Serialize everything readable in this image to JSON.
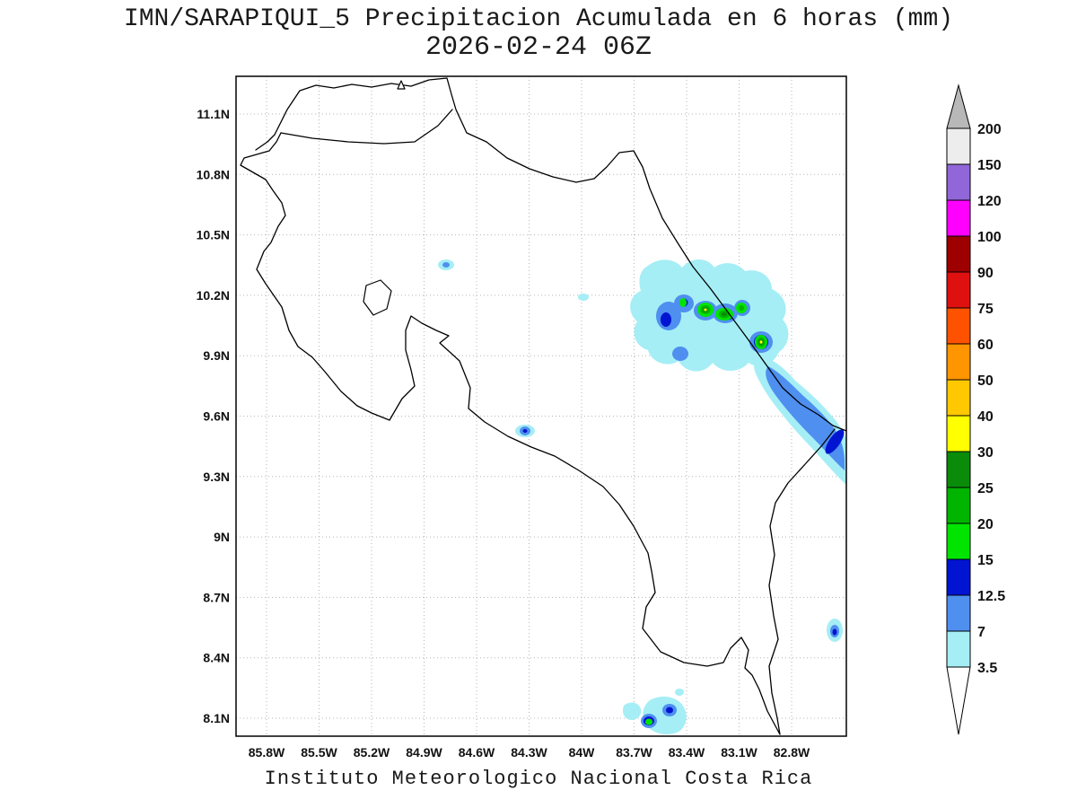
{
  "title": {
    "line1": "IMN/SARAPIQUI_5 Precipitacion Acumulada en 6 horas (mm)",
    "line2": "2026-02-24 06Z"
  },
  "footer": "Instituto Meteorologico Nacional Costa Rica",
  "axes": {
    "y_ticks": [
      "11.1N",
      "10.8N",
      "10.5N",
      "10.2N",
      "9.9N",
      "9.6N",
      "9.3N",
      "9N",
      "8.7N",
      "8.4N",
      "8.1N"
    ],
    "x_ticks": [
      "85.8W",
      "85.5W",
      "85.2W",
      "84.9W",
      "84.6W",
      "84.3W",
      "84W",
      "83.7W",
      "83.4W",
      "83.1W",
      "82.8W"
    ]
  },
  "colorbar": {
    "labels": [
      "200",
      "150",
      "120",
      "100",
      "90",
      "75",
      "60",
      "50",
      "40",
      "30",
      "25",
      "20",
      "15",
      "12.5",
      "7",
      "3.5"
    ],
    "segment_colors": [
      "#ededed",
      "#9166d8",
      "#ff00ff",
      "#9e0000",
      "#df1010",
      "#ff5200",
      "#ff9500",
      "#ffc800",
      "#ffff00",
      "#0a8c0a",
      "#00b400",
      "#00e400",
      "#0014d2",
      "#4f8ff0",
      "#a5eef5"
    ],
    "arrow_top_color": "#b8b8b8",
    "arrow_bottom_color": "#ffffff"
  },
  "palette": {
    "light_cyan": "#a5eef5",
    "blue": "#4f8ff0",
    "dark_blue": "#0014d2",
    "bright_green": "#00e400",
    "green": "#00b400",
    "dark_green": "#0a8c0a",
    "yellow": "#ffff00",
    "grid": "#b5b5b5",
    "coast": "#000000"
  },
  "precip_cells": [
    {
      "area": "Caribbean foothills near 83.4W 10.15N",
      "max_range_mm": "30-40"
    },
    {
      "area": "Caribbean coast near 83.05W 9.95N",
      "max_range_mm": "30-40"
    },
    {
      "area": "Caribbean coastal strip toward Panama border",
      "max_range_mm": "12.5-15"
    },
    {
      "area": "South Pacific near 83.6W 8.1N",
      "max_range_mm": "15-20"
    },
    {
      "area": "Central Pacific coast near 84.35W 9.5N",
      "max_range_mm": "12.5-15"
    },
    {
      "area": "Guanacaste interior near 84.8W 10.35N",
      "max_range_mm": "7-12.5"
    },
    {
      "area": "Southeast near 82.85W 8.55N",
      "max_range_mm": "12.5-15"
    }
  ]
}
